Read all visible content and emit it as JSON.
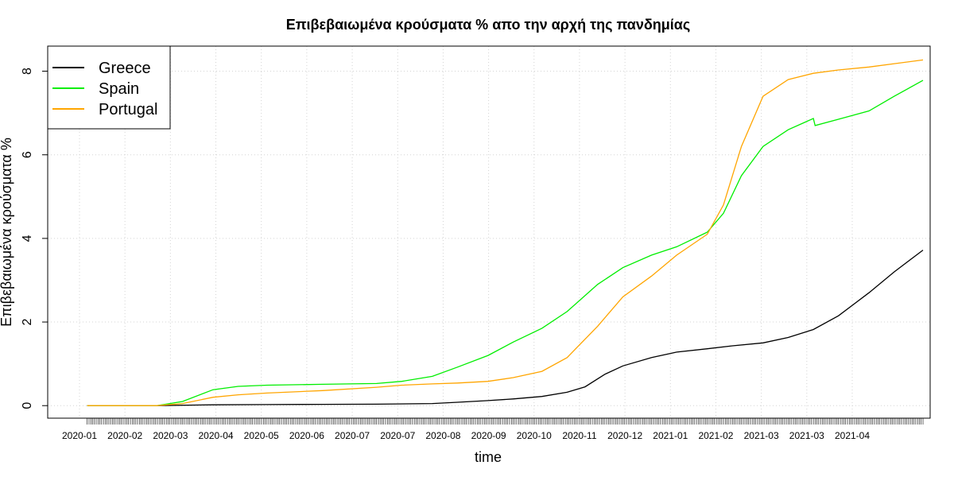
{
  "chart_data": {
    "type": "line",
    "title": "Επιβεβαιωμένα κρούσματα % απο την αρχή της πανδημίας",
    "xlabel": "time",
    "ylabel": "Επιβεβαιωμένα κρούσματα %",
    "xlim": [
      "2019-12-31",
      "2021-05-05"
    ],
    "ylim": [
      -0.3,
      8.6
    ],
    "yticks": [
      0,
      2,
      4,
      6,
      8
    ],
    "xtick_labels": [
      "2020-01",
      "2020-02",
      "2020-03",
      "2020-04",
      "2020-05",
      "2020-06",
      "2020-07",
      "2020-07",
      "2020-08",
      "2020-09",
      "2020-10",
      "2020-11",
      "2020-12",
      "2021-01",
      "2021-02",
      "2021-03",
      "2021-03",
      "2021-04"
    ],
    "grid": true,
    "legend_position": "top-left",
    "series": [
      {
        "name": "Greece",
        "color": "#000000",
        "x": [
          "2020-01-22",
          "2020-03-01",
          "2020-04-01",
          "2020-05-01",
          "2020-06-01",
          "2020-07-01",
          "2020-08-01",
          "2020-08-15",
          "2020-09-01",
          "2020-09-15",
          "2020-10-01",
          "2020-10-15",
          "2020-10-25",
          "2020-11-05",
          "2020-11-15",
          "2020-12-01",
          "2020-12-15",
          "2021-01-01",
          "2021-01-15",
          "2021-02-01",
          "2021-02-15",
          "2021-03-01",
          "2021-03-15",
          "2021-04-01",
          "2021-04-15",
          "2021-05-01"
        ],
        "y": [
          0,
          0,
          0.02,
          0.025,
          0.03,
          0.035,
          0.05,
          0.08,
          0.12,
          0.16,
          0.22,
          0.32,
          0.45,
          0.75,
          0.95,
          1.15,
          1.28,
          1.36,
          1.43,
          1.5,
          1.63,
          1.82,
          2.15,
          2.7,
          3.2,
          3.72
        ]
      },
      {
        "name": "Spain",
        "color": "#00ee00",
        "x": [
          "2020-01-22",
          "2020-03-01",
          "2020-03-15",
          "2020-04-01",
          "2020-04-15",
          "2020-05-01",
          "2020-06-01",
          "2020-07-01",
          "2020-07-15",
          "2020-08-01",
          "2020-08-15",
          "2020-09-01",
          "2020-09-15",
          "2020-10-01",
          "2020-10-15",
          "2020-11-01",
          "2020-11-15",
          "2020-12-01",
          "2020-12-15",
          "2021-01-01",
          "2021-01-10",
          "2021-01-20",
          "2021-02-01",
          "2021-02-15",
          "2021-03-01",
          "2021-03-02",
          "2021-03-15",
          "2021-04-01",
          "2021-04-15",
          "2021-05-01"
        ],
        "y": [
          0,
          0,
          0.1,
          0.38,
          0.46,
          0.49,
          0.51,
          0.53,
          0.58,
          0.7,
          0.92,
          1.2,
          1.52,
          1.85,
          2.25,
          2.9,
          3.3,
          3.6,
          3.8,
          4.15,
          4.6,
          5.5,
          6.2,
          6.6,
          6.87,
          6.7,
          6.85,
          7.05,
          7.4,
          7.78
        ]
      },
      {
        "name": "Portugal",
        "color": "#ffa500",
        "x": [
          "2020-01-22",
          "2020-03-01",
          "2020-03-15",
          "2020-04-01",
          "2020-04-15",
          "2020-05-01",
          "2020-06-01",
          "2020-07-01",
          "2020-07-15",
          "2020-08-01",
          "2020-08-15",
          "2020-09-01",
          "2020-09-15",
          "2020-10-01",
          "2020-10-15",
          "2020-11-01",
          "2020-11-15",
          "2020-12-01",
          "2020-12-15",
          "2021-01-01",
          "2021-01-10",
          "2021-01-20",
          "2021-02-01",
          "2021-02-15",
          "2021-03-01",
          "2021-03-15",
          "2021-04-01",
          "2021-04-15",
          "2021-05-01"
        ],
        "y": [
          0,
          0,
          0.05,
          0.2,
          0.26,
          0.3,
          0.36,
          0.44,
          0.49,
          0.52,
          0.54,
          0.58,
          0.67,
          0.82,
          1.15,
          1.9,
          2.6,
          3.1,
          3.6,
          4.1,
          4.8,
          6.2,
          7.4,
          7.8,
          7.95,
          8.03,
          8.1,
          8.18,
          8.27
        ]
      }
    ]
  }
}
